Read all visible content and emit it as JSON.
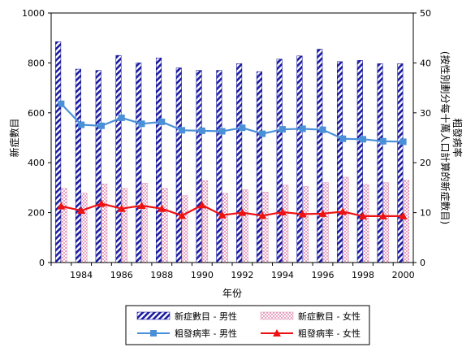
{
  "chart_data": {
    "type": "bar",
    "x": [
      1983,
      1984,
      1985,
      1986,
      1987,
      1988,
      1989,
      1990,
      1991,
      1992,
      1993,
      1994,
      1995,
      1996,
      1997,
      1998,
      1999,
      2000
    ],
    "x_tick_labels": [
      "1984",
      "1986",
      "1988",
      "1990",
      "1992",
      "1994",
      "1996",
      "1998",
      "2000"
    ],
    "x_tick_values": [
      1984,
      1986,
      1988,
      1990,
      1992,
      1994,
      1996,
      1998,
      2000
    ],
    "xlabel": "年份",
    "ylabel_left": "新症數目",
    "ylabel_right": "粗發病率\n(按性別劃分每十萬人口計算的新症數目)",
    "ylim_left": [
      0,
      1000
    ],
    "ylim_right": [
      0,
      50
    ],
    "yticks_left": [
      0,
      200,
      400,
      600,
      800,
      1000
    ],
    "yticks_right": [
      0,
      10,
      20,
      30,
      40,
      50
    ],
    "series": [
      {
        "name": "新症數目 - 男性",
        "kind": "bar",
        "axis": "left",
        "color": "#1a1aa0",
        "pattern": "diagonal-stripe",
        "values": [
          885,
          775,
          770,
          830,
          800,
          820,
          780,
          770,
          770,
          797,
          765,
          815,
          828,
          855,
          805,
          810,
          797,
          797
        ]
      },
      {
        "name": "新症數目 - 女性",
        "kind": "bar",
        "axis": "left",
        "color": "#e8b0c8",
        "pattern": "checker",
        "values": [
          297,
          278,
          315,
          297,
          318,
          297,
          268,
          328,
          277,
          292,
          282,
          310,
          305,
          320,
          342,
          313,
          320,
          330
        ]
      },
      {
        "name": "粗發病率 - 男性",
        "kind": "line",
        "axis": "right",
        "color": "#4a90d8",
        "marker": "square",
        "values": [
          31.8,
          27.6,
          27.4,
          29.0,
          27.8,
          28.2,
          26.5,
          26.4,
          26.3,
          27.0,
          25.8,
          26.7,
          26.8,
          26.6,
          24.8,
          24.7,
          24.3,
          24.2
        ]
      },
      {
        "name": "粗發病率 - 女性",
        "kind": "line",
        "axis": "right",
        "color": "#ee1111",
        "marker": "triangle",
        "values": [
          11.3,
          10.4,
          11.8,
          10.8,
          11.4,
          10.8,
          9.4,
          11.5,
          9.5,
          10.0,
          9.4,
          10.1,
          9.7,
          9.8,
          10.2,
          9.3,
          9.3,
          9.3
        ]
      }
    ],
    "legend": {
      "placement": "bottom",
      "columns": 2
    },
    "grid": false
  }
}
